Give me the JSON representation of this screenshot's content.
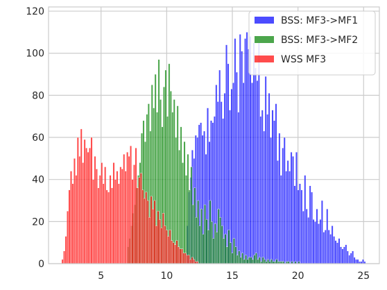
{
  "chart_data": {
    "type": "bar",
    "title": "",
    "xlabel": "",
    "ylabel": "",
    "xlim": [
      1.0,
      26.2
    ],
    "ylim": [
      0,
      122
    ],
    "xticks": [
      5,
      10,
      15,
      20,
      25
    ],
    "yticks": [
      0,
      20,
      40,
      60,
      80,
      100,
      120
    ],
    "grid": true,
    "legend_position": "top-right",
    "series": [
      {
        "name": "BSS: MF3->MF1",
        "color": "#0000ff",
        "bin_width": 0.13,
        "x": [
          11.5,
          11.63,
          11.76,
          11.89,
          12.02,
          12.15,
          12.28,
          12.41,
          12.54,
          12.67,
          12.8,
          12.93,
          13.06,
          13.19,
          13.32,
          13.45,
          13.58,
          13.71,
          13.84,
          13.97,
          14.1,
          14.23,
          14.36,
          14.49,
          14.62,
          14.75,
          14.88,
          15.01,
          15.14,
          15.27,
          15.4,
          15.53,
          15.66,
          15.79,
          15.92,
          16.05,
          16.18,
          16.31,
          16.44,
          16.57,
          16.7,
          16.83,
          16.96,
          17.09,
          17.22,
          17.35,
          17.48,
          17.61,
          17.74,
          17.87,
          18.0,
          18.13,
          18.26,
          18.39,
          18.52,
          18.65,
          18.78,
          18.91,
          19.04,
          19.17,
          19.3,
          19.43,
          19.56,
          19.69,
          19.82,
          19.95,
          20.08,
          20.21,
          20.34,
          20.47,
          20.6,
          20.73,
          20.86,
          20.99,
          21.12,
          21.25,
          21.38,
          21.51,
          21.64,
          21.77,
          21.9,
          22.03,
          22.16,
          22.29,
          22.42,
          22.55,
          22.68,
          22.81,
          22.94,
          23.07,
          23.2,
          23.33,
          23.46,
          23.59,
          23.72,
          23.85,
          23.98,
          24.11,
          24.24,
          24.37,
          24.5,
          24.63,
          24.76,
          24.89,
          25.02
        ],
        "values": [
          18,
          34,
          41,
          54,
          50,
          61,
          60,
          66,
          67,
          61,
          63,
          52,
          74,
          58,
          68,
          67,
          70,
          85,
          77,
          92,
          77,
          69,
          81,
          104,
          95,
          73,
          83,
          86,
          107,
          91,
          72,
          109,
          101,
          86,
          107,
          110,
          102,
          108,
          86,
          105,
          93,
          87,
          105,
          70,
          73,
          63,
          89,
          71,
          81,
          60,
          73,
          68,
          76,
          49,
          62,
          42,
          55,
          60,
          44,
          49,
          44,
          53,
          51,
          37,
          53,
          35,
          38,
          35,
          25,
          42,
          26,
          22,
          37,
          34,
          21,
          20,
          26,
          19,
          21,
          30,
          15,
          16,
          26,
          16,
          14,
          18,
          13,
          11,
          10,
          12,
          8,
          7,
          8,
          9,
          6,
          4,
          5,
          6,
          3,
          2,
          2,
          1,
          1,
          2,
          1
        ]
      },
      {
        "name": "BSS: MF3->MF2",
        "color": "#008000",
        "bin_width": 0.13,
        "x": [
          7.0,
          7.13,
          7.26,
          7.39,
          7.52,
          7.65,
          7.78,
          7.91,
          8.04,
          8.17,
          8.3,
          8.43,
          8.56,
          8.69,
          8.82,
          8.95,
          9.08,
          9.21,
          9.34,
          9.47,
          9.6,
          9.73,
          9.86,
          9.99,
          10.12,
          10.25,
          10.38,
          10.51,
          10.64,
          10.77,
          10.9,
          11.03,
          11.16,
          11.29,
          11.42,
          11.55,
          11.68,
          11.81,
          11.94,
          12.07,
          12.2,
          12.33,
          12.46,
          12.59,
          12.72,
          12.85,
          12.98,
          13.11,
          13.24,
          13.37,
          13.5,
          13.63,
          13.76,
          13.89,
          14.02,
          14.15,
          14.28,
          14.41,
          14.54,
          14.67,
          14.8,
          14.93,
          15.06,
          15.19,
          15.32,
          15.45,
          15.58,
          15.71,
          15.84,
          15.97,
          16.1,
          16.23,
          16.36,
          16.49,
          16.62,
          16.75,
          16.88,
          17.01,
          17.14,
          17.27,
          17.4,
          17.53,
          17.66,
          17.79,
          17.92,
          18.05,
          18.18,
          18.31,
          18.44,
          18.57,
          18.7,
          18.83,
          18.96,
          19.09,
          19.22,
          19.35,
          19.48,
          19.61,
          19.74,
          19.87,
          20.0
        ],
        "values": [
          8,
          12,
          18,
          24,
          28,
          36,
          42,
          48,
          62,
          68,
          58,
          71,
          76,
          63,
          85,
          74,
          90,
          72,
          97,
          78,
          65,
          84,
          92,
          70,
          95,
          82,
          72,
          78,
          60,
          75,
          54,
          65,
          48,
          58,
          42,
          52,
          35,
          46,
          28,
          36,
          22,
          30,
          18,
          26,
          14,
          28,
          21,
          16,
          30,
          20,
          12,
          19,
          15,
          26,
          22,
          18,
          12,
          14,
          8,
          16,
          10,
          5,
          12,
          8,
          4,
          6,
          3,
          5,
          2,
          4,
          2,
          3,
          3,
          2,
          4,
          5,
          2,
          3,
          1,
          3,
          2,
          1,
          2,
          1,
          2,
          1,
          1,
          2,
          1,
          1,
          1,
          1,
          0,
          1,
          1,
          0,
          1,
          0,
          1,
          0,
          1
        ]
      },
      {
        "name": "WSS MF3",
        "color": "#ff0000",
        "bin_width": 0.13,
        "x": [
          2.0,
          2.13,
          2.26,
          2.39,
          2.52,
          2.65,
          2.78,
          2.91,
          3.04,
          3.17,
          3.3,
          3.43,
          3.56,
          3.69,
          3.82,
          3.95,
          4.08,
          4.21,
          4.34,
          4.47,
          4.6,
          4.73,
          4.86,
          4.99,
          5.12,
          5.25,
          5.38,
          5.51,
          5.64,
          5.77,
          5.9,
          6.03,
          6.16,
          6.29,
          6.42,
          6.55,
          6.68,
          6.81,
          6.94,
          7.07,
          7.2,
          7.33,
          7.46,
          7.59,
          7.72,
          7.85,
          7.98,
          8.11,
          8.24,
          8.37,
          8.5,
          8.63,
          8.76,
          8.89,
          9.02,
          9.15,
          9.28,
          9.41,
          9.54,
          9.67,
          9.8,
          9.93,
          10.06,
          10.19,
          10.32,
          10.45,
          10.58,
          10.71,
          10.84,
          10.97,
          11.1,
          11.23,
          11.36,
          11.49,
          11.62,
          11.75,
          11.88,
          12.01,
          12.14,
          12.27
        ],
        "values": [
          2,
          6,
          13,
          25,
          35,
          44,
          38,
          50,
          42,
          60,
          51,
          64,
          48,
          59,
          55,
          53,
          55,
          60,
          40,
          51,
          45,
          36,
          42,
          48,
          38,
          46,
          35,
          34,
          42,
          36,
          48,
          40,
          44,
          38,
          46,
          45,
          52,
          44,
          53,
          51,
          56,
          40,
          47,
          55,
          36,
          41,
          43,
          35,
          31,
          34,
          30,
          22,
          32,
          26,
          30,
          18,
          25,
          21,
          17,
          24,
          18,
          16,
          13,
          16,
          11,
          10,
          9,
          11,
          8,
          7,
          7,
          5,
          5,
          4,
          4,
          2,
          3,
          2,
          1,
          1
        ]
      }
    ]
  }
}
